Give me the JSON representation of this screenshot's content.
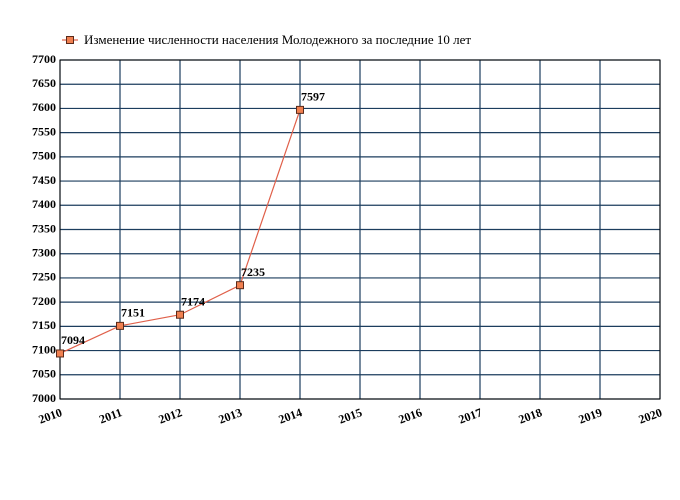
{
  "chart_data": {
    "type": "line",
    "x": [
      2010,
      2011,
      2012,
      2013,
      2014
    ],
    "series": [
      {
        "name": "Изменение численности населения Молодежного за последние 10 лет",
        "color": "#e0604a",
        "marker_color": "#f08050",
        "values": [
          7094,
          7151,
          7174,
          7235,
          7597
        ]
      }
    ],
    "xlim": [
      2010,
      2020
    ],
    "xticks": [
      2010,
      2011,
      2012,
      2013,
      2014,
      2015,
      2016,
      2017,
      2018,
      2019,
      2020
    ],
    "ylim": [
      7000,
      7700
    ],
    "yticks": [
      7000,
      7050,
      7100,
      7150,
      7200,
      7250,
      7300,
      7350,
      7400,
      7450,
      7500,
      7550,
      7600,
      7650,
      7700
    ],
    "grid": true,
    "grid_color": "#1c3d5e",
    "legend": "top-left"
  }
}
